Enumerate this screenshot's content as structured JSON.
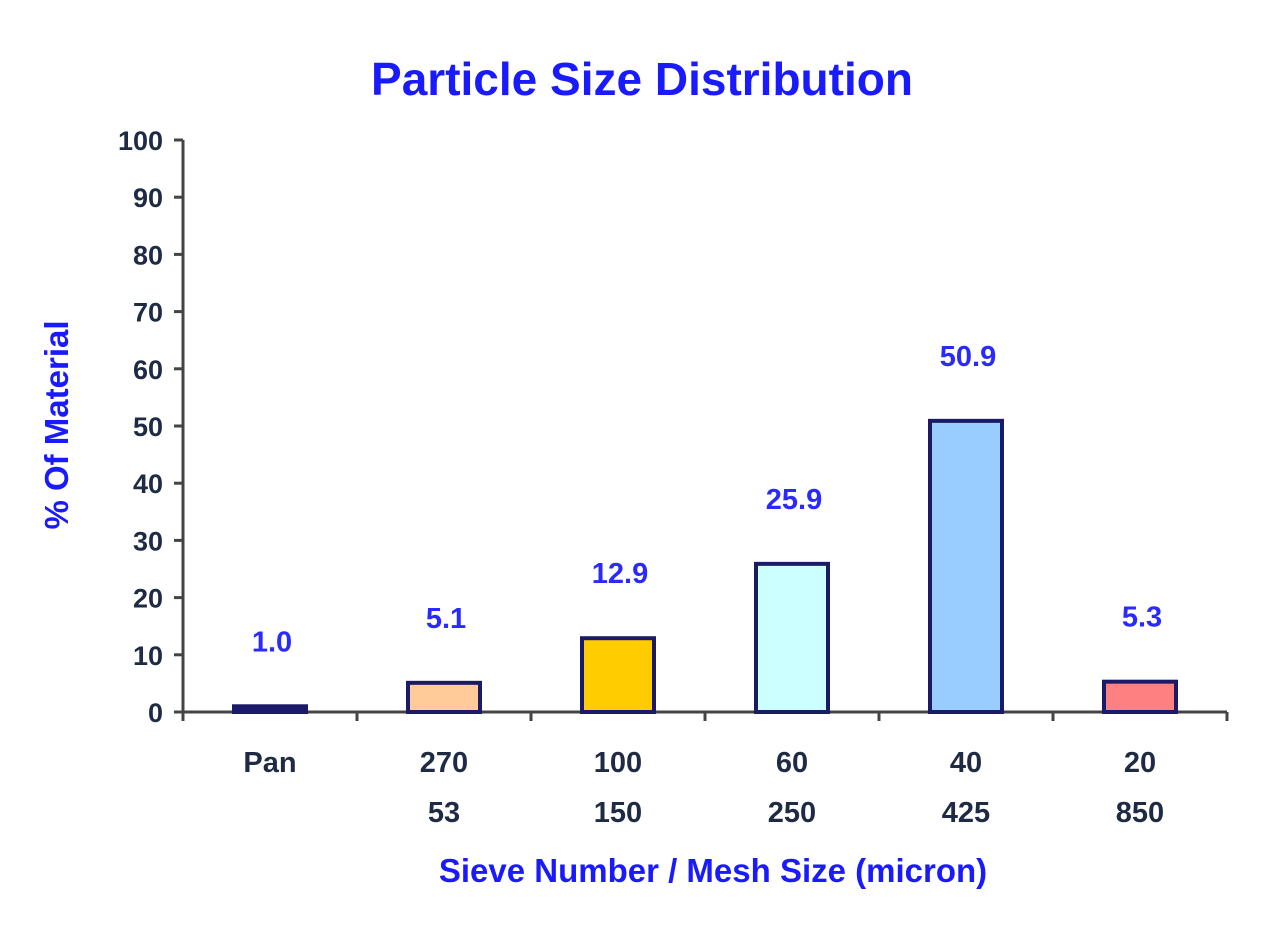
{
  "chart_data": {
    "type": "bar",
    "title": "Particle Size Distribution",
    "xlabel": "Sieve Number / Mesh Size (micron)",
    "ylabel": "% Of Material",
    "ylim": [
      0,
      100
    ],
    "yticks": [
      "0",
      "10",
      "20",
      "30",
      "40",
      "50",
      "60",
      "70",
      "80",
      "90",
      "100"
    ],
    "categories": [
      {
        "sieve": "Pan",
        "mesh": ""
      },
      {
        "sieve": "270",
        "mesh": "53"
      },
      {
        "sieve": "100",
        "mesh": "150"
      },
      {
        "sieve": "60",
        "mesh": "250"
      },
      {
        "sieve": "40",
        "mesh": "425"
      },
      {
        "sieve": "20",
        "mesh": "850"
      }
    ],
    "values": [
      1.0,
      5.1,
      12.9,
      25.9,
      50.9,
      5.3
    ],
    "value_labels": [
      "1.0",
      "5.1",
      "12.9",
      "25.9",
      "50.9",
      "5.3"
    ],
    "colors": [
      "#1a1a7a",
      "#ffcc99",
      "#ffcc00",
      "#ccffff",
      "#99ccff",
      "#ff8080"
    ],
    "grid": false,
    "legend": "none"
  }
}
